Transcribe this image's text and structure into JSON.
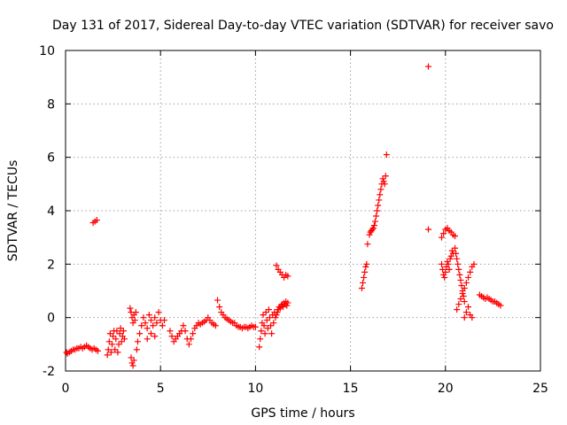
{
  "chart_data": {
    "type": "scatter",
    "title": "Day 131 of 2017, Sidereal Day-to-day VTEC variation (SDTVAR) for receiver savo",
    "xlabel": "GPS time / hours",
    "ylabel": "SDTVAR / TECUs",
    "xlim": [
      0,
      25
    ],
    "ylim": [
      -2,
      10
    ],
    "xticks": [
      0,
      5,
      10,
      15,
      20,
      25
    ],
    "yticks": [
      -2,
      0,
      2,
      4,
      6,
      8,
      10
    ],
    "grid": true,
    "marker": "+",
    "color": "#ff0000",
    "series": [
      {
        "name": "SDTVAR",
        "x": [
          0.05,
          0.1,
          0.2,
          0.3,
          0.4,
          0.5,
          0.6,
          0.7,
          0.8,
          0.9,
          1.0,
          1.1,
          1.2,
          1.3,
          1.4,
          1.5,
          1.6,
          1.7,
          1.45,
          1.55,
          1.65,
          2.2,
          2.25,
          2.3,
          2.35,
          2.4,
          2.45,
          2.5,
          2.55,
          2.6,
          2.65,
          2.7,
          2.75,
          2.8,
          2.85,
          2.9,
          2.95,
          3.0,
          3.05,
          3.1,
          3.4,
          3.45,
          3.5,
          3.55,
          3.6,
          3.65,
          3.7,
          3.45,
          3.5,
          3.55,
          3.6,
          3.75,
          3.8,
          3.9,
          4.0,
          4.1,
          4.2,
          4.3,
          4.4,
          4.5,
          4.6,
          4.7,
          4.8,
          4.9,
          5.0,
          5.1,
          5.2,
          4.3,
          4.5,
          4.7,
          5.5,
          5.6,
          5.7,
          5.8,
          5.9,
          6.0,
          6.1,
          6.2,
          6.3,
          6.4,
          6.5,
          6.6,
          6.7,
          6.8,
          6.9,
          7.0,
          7.1,
          7.2,
          7.3,
          7.4,
          7.5,
          7.6,
          7.7,
          7.8,
          7.9,
          8.0,
          8.1,
          8.2,
          8.3,
          8.4,
          8.5,
          8.6,
          8.7,
          8.8,
          8.9,
          9.0,
          9.1,
          9.2,
          9.3,
          9.4,
          9.5,
          9.6,
          9.7,
          9.8,
          9.9,
          10.0,
          10.2,
          10.25,
          10.3,
          10.35,
          10.4,
          10.45,
          10.5,
          10.55,
          10.6,
          10.65,
          10.7,
          10.75,
          10.8,
          10.85,
          10.9,
          10.95,
          11.0,
          11.05,
          11.1,
          11.15,
          11.2,
          11.25,
          11.3,
          11.35,
          11.4,
          11.45,
          11.5,
          11.55,
          11.6,
          11.65,
          11.7,
          11.1,
          11.2,
          11.3,
          11.4,
          11.5,
          11.6,
          11.7,
          15.6,
          15.65,
          15.7,
          15.75,
          15.8,
          15.85,
          15.9,
          16.0,
          16.05,
          16.1,
          16.15,
          16.2,
          16.25,
          16.3,
          16.35,
          16.4,
          16.45,
          16.5,
          16.55,
          16.6,
          16.65,
          16.7,
          16.75,
          16.8,
          16.85,
          16.9,
          19.1,
          19.1,
          19.8,
          19.85,
          19.9,
          19.95,
          20.0,
          20.05,
          20.1,
          20.15,
          20.2,
          20.25,
          20.3,
          20.35,
          20.4,
          19.8,
          19.9,
          20.0,
          20.1,
          20.2,
          20.3,
          20.4,
          20.5,
          20.5,
          20.55,
          20.6,
          20.65,
          20.7,
          20.75,
          20.8,
          20.85,
          20.9,
          20.95,
          21.0,
          20.6,
          20.7,
          20.8,
          20.9,
          21.0,
          21.1,
          21.2,
          21.3,
          21.4,
          21.5,
          21.0,
          21.1,
          21.2,
          21.3,
          21.4,
          21.8,
          21.9,
          22.0,
          22.1,
          22.2,
          22.3,
          22.4,
          22.5,
          22.6,
          22.7,
          22.8,
          22.9
        ],
        "y": [
          -1.3,
          -1.35,
          -1.3,
          -1.25,
          -1.2,
          -1.2,
          -1.15,
          -1.15,
          -1.1,
          -1.15,
          -1.1,
          -1.05,
          -1.1,
          -1.15,
          -1.2,
          -1.15,
          -1.2,
          -1.25,
          3.55,
          3.6,
          3.65,
          -1.4,
          -1.2,
          -0.9,
          -0.6,
          -1.3,
          -1.0,
          -0.7,
          -0.5,
          -1.2,
          -0.8,
          -0.5,
          -1.3,
          -1.0,
          -0.6,
          -0.4,
          -0.9,
          -0.7,
          -0.5,
          -0.8,
          0.35,
          0.2,
          0.0,
          -0.2,
          0.1,
          -0.1,
          0.2,
          -1.5,
          -1.7,
          -1.8,
          -1.6,
          -1.2,
          -0.9,
          -0.6,
          -0.3,
          0.0,
          -0.2,
          -0.4,
          0.1,
          -0.1,
          -0.3,
          0.0,
          -0.2,
          0.2,
          -0.1,
          -0.3,
          -0.1,
          -0.8,
          -0.6,
          -0.7,
          -0.5,
          -0.7,
          -0.9,
          -0.8,
          -0.7,
          -0.6,
          -0.5,
          -0.3,
          -0.5,
          -0.8,
          -1.0,
          -0.8,
          -0.6,
          -0.4,
          -0.3,
          -0.2,
          -0.25,
          -0.2,
          -0.15,
          -0.1,
          0.0,
          -0.1,
          -0.2,
          -0.25,
          -0.3,
          0.65,
          0.4,
          0.2,
          0.1,
          0.0,
          -0.05,
          -0.1,
          -0.15,
          -0.2,
          -0.2,
          -0.3,
          -0.35,
          -0.35,
          -0.4,
          -0.35,
          -0.35,
          -0.4,
          -0.35,
          -0.3,
          -0.35,
          -0.35,
          -1.1,
          -0.8,
          -0.5,
          -0.2,
          0.1,
          -0.3,
          -0.6,
          0.2,
          -0.1,
          -0.4,
          0.3,
          0.0,
          -0.3,
          -0.6,
          0.1,
          -0.2,
          0.2,
          0.0,
          0.1,
          0.2,
          0.3,
          0.4,
          0.35,
          0.45,
          0.5,
          0.4,
          0.55,
          0.5,
          0.6,
          0.45,
          0.55,
          1.95,
          1.8,
          1.7,
          1.6,
          1.5,
          1.6,
          1.55,
          1.1,
          1.3,
          1.5,
          1.7,
          1.9,
          2.0,
          2.75,
          3.1,
          3.2,
          3.25,
          3.3,
          3.35,
          3.45,
          3.6,
          3.8,
          4.0,
          4.2,
          4.4,
          4.6,
          4.8,
          5.0,
          5.2,
          5.1,
          5.0,
          5.3,
          6.1,
          9.4,
          3.3,
          2.0,
          1.8,
          1.6,
          1.5,
          1.7,
          1.9,
          2.1,
          2.0,
          1.8,
          2.2,
          2.3,
          2.5,
          2.4,
          3.0,
          3.15,
          3.3,
          3.35,
          3.25,
          3.2,
          3.1,
          3.05,
          2.6,
          2.4,
          2.2,
          2.0,
          1.8,
          1.6,
          1.4,
          1.2,
          1.0,
          0.8,
          0.6,
          0.3,
          0.5,
          0.7,
          0.9,
          1.1,
          1.3,
          1.5,
          1.7,
          1.9,
          2.0,
          0.0,
          0.2,
          0.4,
          0.1,
          0.0,
          0.85,
          0.8,
          0.75,
          0.7,
          0.75,
          0.7,
          0.65,
          0.6,
          0.6,
          0.55,
          0.5,
          0.45
        ]
      }
    ]
  }
}
